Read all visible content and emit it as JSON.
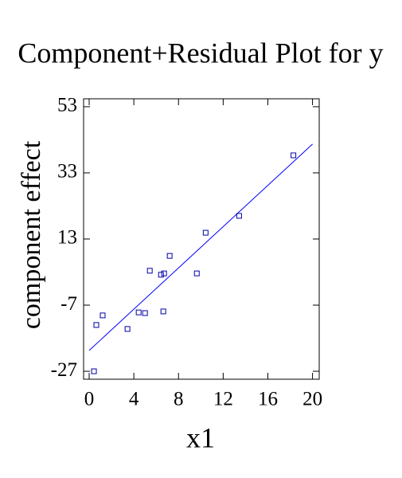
{
  "chart_data": {
    "type": "scatter",
    "title": "Component+Residual Plot for y",
    "x_label": "x1",
    "y_label": "component effect",
    "x": [
      0.43,
      0.64,
      1.21,
      3.43,
      4.43,
      5.0,
      5.43,
      6.43,
      6.71,
      6.64,
      7.21,
      9.64,
      10.43,
      13.43,
      18.29
    ],
    "values": [
      -27,
      -13.0,
      -10.1,
      -14.2,
      -9.2,
      -9.4,
      3.4,
      2.2,
      2.6,
      -8.9,
      7.9,
      2.6,
      14.9,
      20.0,
      38.3
    ],
    "color": "#0000aa",
    "fit_line": {
      "x": [
        0,
        20
      ],
      "values": [
        -20.7,
        41.7
      ],
      "color": "#0000ff"
    },
    "xlim": [
      -0.5,
      20.6
    ],
    "ylim": [
      -29.4,
      55.4
    ],
    "xticks": [
      0,
      4,
      8,
      12,
      16,
      20
    ],
    "yticks": [
      -27,
      -7,
      13,
      33,
      53
    ]
  }
}
